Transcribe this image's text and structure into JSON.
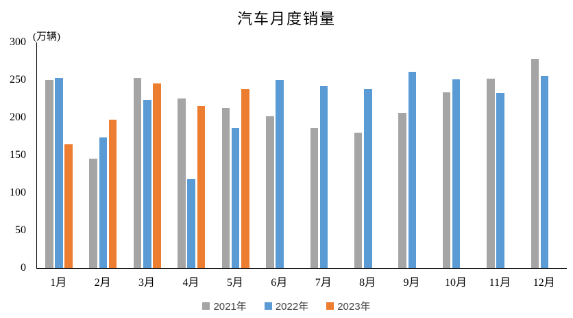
{
  "chart_data": {
    "type": "bar",
    "title": "汽车月度销量",
    "unit_label": "(万辆)",
    "categories": [
      "1月",
      "2月",
      "3月",
      "4月",
      "5月",
      "6月",
      "7月",
      "8月",
      "9月",
      "10月",
      "11月",
      "12月"
    ],
    "series": [
      {
        "name": "2021年",
        "color": "#A5A5A5",
        "values": [
          250.3,
          145.5,
          252.6,
          225.2,
          212.8,
          201.5,
          186.4,
          179.9,
          206.7,
          233.3,
          252.2,
          278.6
        ]
      },
      {
        "name": "2022年",
        "color": "#5B9BD5",
        "values": [
          253.1,
          173.7,
          223.4,
          118.1,
          186.2,
          250.2,
          242.0,
          238.3,
          261.0,
          250.5,
          232.8,
          255.6
        ]
      },
      {
        "name": "2023年",
        "color": "#ED7D31",
        "values": [
          164.9,
          197.6,
          245.1,
          215.9,
          238.2,
          null,
          null,
          null,
          null,
          null,
          null,
          null
        ]
      }
    ],
    "ylim": [
      0,
      300
    ],
    "ytick_step": 50,
    "yticks": [
      0,
      50,
      100,
      150,
      200,
      250,
      300
    ],
    "grid": false,
    "legend_position": "bottom",
    "axis_color": "#000000"
  }
}
